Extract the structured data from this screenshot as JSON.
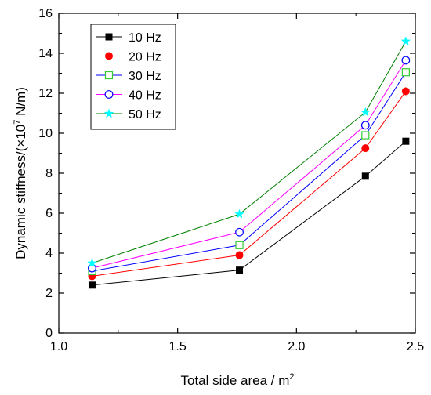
{
  "chart_data": {
    "type": "line",
    "x": [
      1.14,
      1.76,
      2.29,
      2.46
    ],
    "xlim": [
      1.0,
      2.5
    ],
    "ylim": [
      0,
      16
    ],
    "xticks": [
      "1.0",
      "1.5",
      "2.0",
      "2.5"
    ],
    "yticks": [
      "0",
      "2",
      "4",
      "6",
      "8",
      "10",
      "12",
      "14",
      "16"
    ],
    "xlabel_prefix": "Total side area / m",
    "xlabel_sup": "2",
    "ylabel_prefix": "Dynamic stiffness/(×10",
    "ylabel_sup": "7",
    "ylabel_suffix": " N/m)",
    "legend_position": "top-left",
    "grid": false,
    "series": [
      {
        "name": "10 Hz",
        "values": [
          2.4,
          3.15,
          7.85,
          9.6
        ],
        "color": "#000000",
        "marker": "square-filled"
      },
      {
        "name": "20 Hz",
        "values": [
          2.85,
          3.9,
          9.25,
          12.1
        ],
        "color": "#ff0000",
        "marker": "circle-filled"
      },
      {
        "name": "30 Hz",
        "values": [
          3.1,
          4.4,
          9.9,
          13.05
        ],
        "color": "#0000ff",
        "marker": "square-open",
        "marker_color": "#33cc33"
      },
      {
        "name": "40 Hz",
        "values": [
          3.25,
          5.05,
          10.4,
          13.65
        ],
        "color": "#ff00ff",
        "marker": "circle-open",
        "marker_color": "#0000ff"
      },
      {
        "name": "50 Hz",
        "values": [
          3.5,
          5.95,
          11.05,
          14.6
        ],
        "color": "#008000",
        "marker": "star",
        "marker_color": "#00ffff"
      }
    ]
  }
}
